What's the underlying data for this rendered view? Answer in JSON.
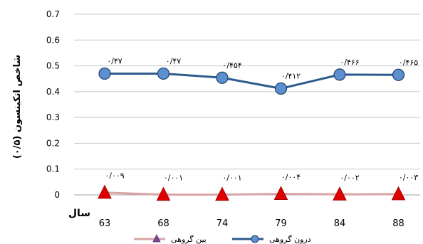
{
  "chart_data": {
    "type": "line",
    "xlabel": "سال",
    "ylabel": "شاخص اتکینسون (۰/۵)",
    "ylim": [
      0,
      0.7
    ],
    "yticks": [
      "0",
      "0.1",
      "0.2",
      "0.3",
      "0.4",
      "0.5",
      "0.6",
      "0.7"
    ],
    "categories": [
      "63",
      "68",
      "74",
      "79",
      "84",
      "88"
    ],
    "grid": true,
    "legend_position": "bottom",
    "series": [
      {
        "name": "درون گروهی",
        "values": [
          0.47,
          0.47,
          0.454,
          0.412,
          0.466,
          0.465
        ],
        "labels": [
          "۰/۴۷",
          "۰/۴۷",
          "۰/۴۵۴",
          "۰/۴۱۲",
          "۰/۴۶۶",
          "۰/۴۶۵"
        ],
        "color": "#2f5b8c",
        "marker": "circle",
        "marker_color": "#5b8fd0"
      },
      {
        "name": "بین گروهی",
        "values": [
          0.009,
          0.001,
          0.001,
          0.004,
          0.002,
          0.003
        ],
        "labels": [
          "۰/۰۰۹",
          "۰/۰۰۱",
          "۰/۰۰۱",
          "۰/۰۰۴",
          "۰/۰۰۲",
          "۰/۰۰۳"
        ],
        "color": "#d9a4a4",
        "marker": "triangle",
        "marker_color": "#e00000"
      }
    ]
  }
}
